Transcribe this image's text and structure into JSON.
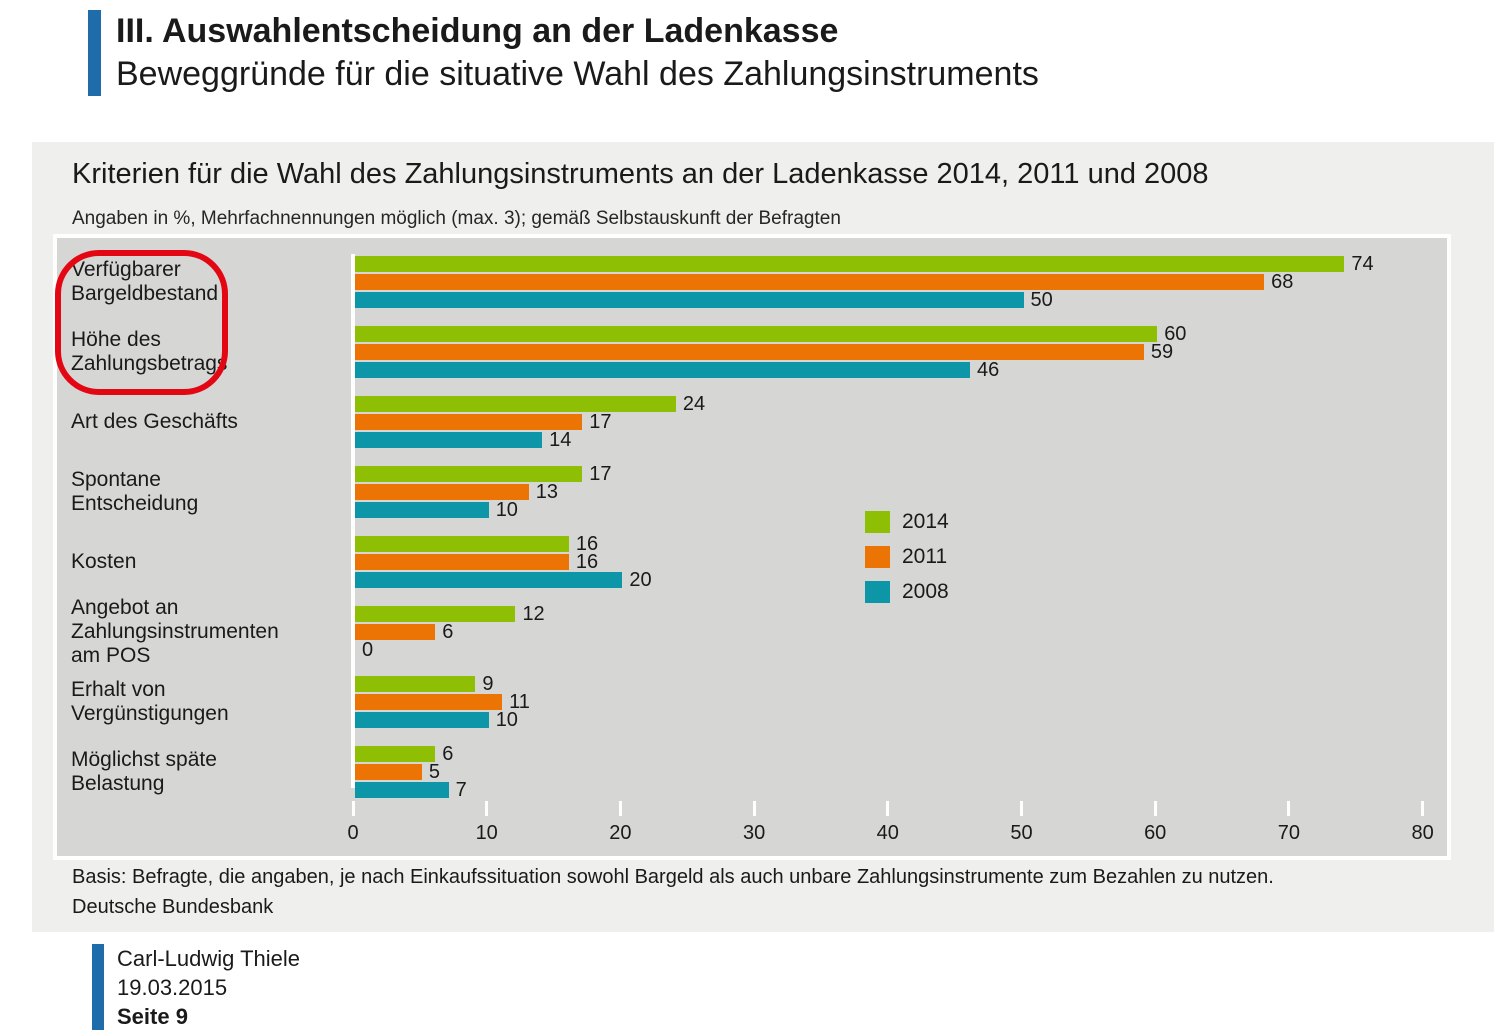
{
  "header": {
    "title": "III. Auswahlentscheidung an der Ladenkasse",
    "subtitle": "Beweggründe für die situative Wahl des Zahlungsinstruments"
  },
  "chart": {
    "title": "Kriterien für die Wahl des Zahlungsinstruments an der Ladenkasse 2014, 2011 und 2008",
    "subtitle": "Angaben in %, Mehrfachnennungen möglich (max. 3); gemäß Selbstauskunft der Befragten",
    "note_basis": "Basis: Befragte, die angaben, je nach Einkaufssituation sowohl Bargeld als auch unbare Zahlungsinstrumente zum Bezahlen zu nutzen.",
    "source": "Deutsche Bundesbank"
  },
  "chart_data": {
    "type": "bar",
    "orientation": "horizontal",
    "categories": [
      "Verfügbarer\nBargeldbestand",
      "Höhe des\nZahlungsbetrags",
      "Art des Geschäfts",
      "Spontane\nEntscheidung",
      "Kosten",
      "Angebot an\nZahlungsinstrumenten\nam POS",
      "Erhalt von\nVergünstigungen",
      "Möglichst späte\nBelastung"
    ],
    "series": [
      {
        "name": "2014",
        "color": "#8fbf04",
        "values": [
          74,
          60,
          24,
          17,
          16,
          12,
          9,
          6
        ]
      },
      {
        "name": "2011",
        "color": "#ec7405",
        "values": [
          68,
          59,
          17,
          13,
          16,
          6,
          11,
          5
        ]
      },
      {
        "name": "2008",
        "color": "#0d95a8",
        "values": [
          50,
          46,
          14,
          10,
          20,
          0,
          10,
          7
        ]
      }
    ],
    "xlim": [
      0,
      80
    ],
    "xticks": [
      0,
      10,
      20,
      30,
      40,
      50,
      60,
      70,
      80
    ],
    "value_labels": true,
    "grid": false,
    "legend_position": "middle-right",
    "annotation": {
      "shape": "red-oval",
      "color": "#e30613",
      "around_categories": [
        "Verfügbarer Bargeldbestand",
        "Höhe des Zahlungsbetrags"
      ]
    }
  },
  "footer": {
    "author": "Carl-Ludwig Thiele",
    "date": "19.03.2015",
    "page_label": "Seite 9"
  },
  "colors": {
    "accent_blue": "#1f6cab",
    "panel_background": "#efefed",
    "plot_background": "#d6d6d4",
    "annotation_red": "#e30613",
    "series_2014": "#8fbf04",
    "series_2011": "#ec7405",
    "series_2008": "#0d95a8"
  }
}
